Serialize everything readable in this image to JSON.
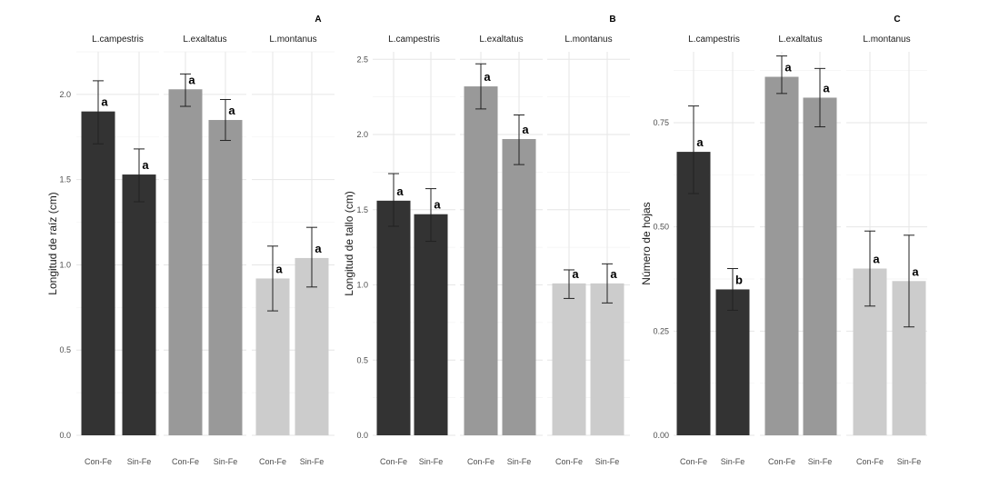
{
  "colors": {
    "L.campestris": "#333333",
    "L.exaltatus": "#999999",
    "L.montanus": "#cccccc"
  },
  "chart_data": [
    {
      "type": "bar",
      "panel_label": "A",
      "ylabel": "Longitud de raíz (cm)",
      "ylim": [
        0,
        2.25
      ],
      "yticks": [
        0.0,
        0.5,
        1.0,
        1.5,
        2.0
      ],
      "ytick_labels": [
        "0.0",
        "0.5",
        "1.0",
        "1.5",
        "2.0"
      ],
      "facets": [
        "L.campestris",
        "L.exaltatus",
        "L.montanus"
      ],
      "categories": [
        "Con-Fe",
        "Sin-Fe"
      ],
      "series": [
        {
          "name": "L.campestris",
          "values": [
            1.9,
            1.53
          ],
          "err_low": [
            1.71,
            1.37
          ],
          "err_high": [
            2.08,
            1.68
          ],
          "labels": [
            "a",
            "a"
          ]
        },
        {
          "name": "L.exaltatus",
          "values": [
            2.03,
            1.85
          ],
          "err_low": [
            1.93,
            1.73
          ],
          "err_high": [
            2.12,
            1.97
          ],
          "labels": [
            "a",
            "a"
          ]
        },
        {
          "name": "L.montanus",
          "values": [
            0.92,
            1.04
          ],
          "err_low": [
            0.73,
            0.87
          ],
          "err_high": [
            1.11,
            1.22
          ],
          "labels": [
            "a",
            "a"
          ]
        }
      ]
    },
    {
      "type": "bar",
      "panel_label": "B",
      "ylabel": "Longitud de tallo (cm)",
      "ylim": [
        0,
        2.55
      ],
      "yticks": [
        0.0,
        0.5,
        1.0,
        1.5,
        2.0,
        2.5
      ],
      "ytick_labels": [
        "0.0",
        "0.5",
        "1.0",
        "1.5",
        "2.0",
        "2.5"
      ],
      "facets": [
        "L.campestris",
        "L.exaltatus",
        "L.montanus"
      ],
      "categories": [
        "Con-Fe",
        "Sin-Fe"
      ],
      "series": [
        {
          "name": "L.campestris",
          "values": [
            1.56,
            1.47
          ],
          "err_low": [
            1.39,
            1.29
          ],
          "err_high": [
            1.74,
            1.64
          ],
          "labels": [
            "a",
            "a"
          ]
        },
        {
          "name": "L.exaltatus",
          "values": [
            2.32,
            1.97
          ],
          "err_low": [
            2.17,
            1.8
          ],
          "err_high": [
            2.47,
            2.13
          ],
          "labels": [
            "a",
            "a"
          ]
        },
        {
          "name": "L.montanus",
          "values": [
            1.01,
            1.01
          ],
          "err_low": [
            0.91,
            0.88
          ],
          "err_high": [
            1.1,
            1.14
          ],
          "labels": [
            "a",
            "a"
          ]
        }
      ]
    },
    {
      "type": "bar",
      "panel_label": "C",
      "ylabel": "Número de hojas",
      "ylim": [
        0,
        0.92
      ],
      "yticks": [
        0.0,
        0.25,
        0.5,
        0.75
      ],
      "ytick_labels": [
        "0.00",
        "0.25",
        "0.50",
        "0.75"
      ],
      "facets": [
        "L.campestris",
        "L.exaltatus",
        "L.montanus"
      ],
      "categories": [
        "Con-Fe",
        "Sin-Fe"
      ],
      "series": [
        {
          "name": "L.campestris",
          "values": [
            0.68,
            0.35
          ],
          "err_low": [
            0.58,
            0.3
          ],
          "err_high": [
            0.79,
            0.4
          ],
          "labels": [
            "a",
            "b"
          ]
        },
        {
          "name": "L.exaltatus",
          "values": [
            0.86,
            0.81
          ],
          "err_low": [
            0.82,
            0.74
          ],
          "err_high": [
            0.91,
            0.88
          ],
          "labels": [
            "a",
            "a"
          ]
        },
        {
          "name": "L.montanus",
          "values": [
            0.4,
            0.37
          ],
          "err_low": [
            0.31,
            0.26
          ],
          "err_high": [
            0.49,
            0.48
          ],
          "labels": [
            "a",
            "a"
          ]
        }
      ]
    }
  ]
}
